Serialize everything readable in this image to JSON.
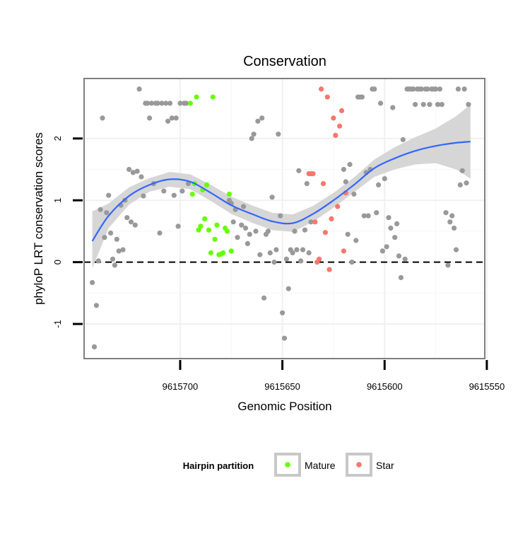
{
  "chart_data": {
    "type": "scatter",
    "title": "Conservation",
    "xlabel": "Genomic Position",
    "ylabel": "phyloP LRT conservation scores",
    "x_reversed": true,
    "xlim": [
      9615747,
      9615551
    ],
    "ylim": [
      -1.56,
      2.97
    ],
    "x_ticks": [
      9615700,
      9615650,
      9615600,
      9615550
    ],
    "x_tick_labels": [
      "9615700",
      "9615650",
      "9615600",
      "9615550"
    ],
    "y_ticks": [
      -1,
      0,
      1,
      2
    ],
    "y_tick_labels": [
      "-1",
      "0",
      "1",
      "2"
    ],
    "reference_line": {
      "y": 0,
      "style": "dashed"
    },
    "grid": true,
    "legend": {
      "title": "Hairpin partition",
      "position": "bottom",
      "entries": [
        {
          "label": "Mature",
          "color": "#66ff00"
        },
        {
          "label": "Star",
          "color": "#f8766d"
        }
      ]
    },
    "colors": {
      "other": "#999999",
      "Mature": "#66ff00",
      "Star": "#f8766d",
      "smooth": "#3366ff",
      "band": "#d6d6d6"
    },
    "series": [
      {
        "name": "other",
        "points": [
          [
            9615743,
            -0.33
          ],
          [
            9615742,
            -1.37
          ],
          [
            9615741,
            -0.7
          ],
          [
            9615740,
            0.02
          ],
          [
            9615739,
            0.85
          ],
          [
            9615738,
            2.33
          ],
          [
            9615737,
            0.4
          ],
          [
            9615736,
            0.8
          ],
          [
            9615735,
            1.08
          ],
          [
            9615734,
            0.47
          ],
          [
            9615733,
            0.05
          ],
          [
            9615732,
            -0.05
          ],
          [
            9615731,
            0.37
          ],
          [
            9615730,
            0.18
          ],
          [
            9615729,
            0.92
          ],
          [
            9615728,
            0.2
          ],
          [
            9615727,
            1.0
          ],
          [
            9615726,
            0.72
          ],
          [
            9615725,
            1.5
          ],
          [
            9615724,
            0.65
          ],
          [
            9615723,
            1.45
          ],
          [
            9615722,
            0.6
          ],
          [
            9615721,
            1.47
          ],
          [
            9615720,
            2.8
          ],
          [
            9615719,
            1.38
          ],
          [
            9615718,
            1.07
          ],
          [
            9615717,
            2.57
          ],
          [
            9615716,
            2.57
          ],
          [
            9615715,
            2.33
          ],
          [
            9615714,
            2.57
          ],
          [
            9615713,
            1.27
          ],
          [
            9615712,
            2.57
          ],
          [
            9615711,
            2.57
          ],
          [
            9615710,
            0.47
          ],
          [
            9615709,
            2.57
          ],
          [
            9615708,
            1.15
          ],
          [
            9615707,
            2.57
          ],
          [
            9615706,
            2.28
          ],
          [
            9615705,
            2.57
          ],
          [
            9615704,
            2.33
          ],
          [
            9615703,
            1.08
          ],
          [
            9615702,
            2.33
          ],
          [
            9615701,
            0.58
          ],
          [
            9615700,
            2.57
          ],
          [
            9615699,
            1.15
          ],
          [
            9615698,
            2.57
          ],
          [
            9615697,
            2.57
          ],
          [
            9615696,
            1.27
          ],
          [
            9615676,
            1.0
          ],
          [
            9615675,
            0.95
          ],
          [
            9615674,
            0.65
          ],
          [
            9615673,
            0.85
          ],
          [
            9615672,
            0.4
          ],
          [
            9615670,
            0.6
          ],
          [
            9615669,
            0.9
          ],
          [
            9615668,
            0.55
          ],
          [
            9615667,
            0.3
          ],
          [
            9615666,
            0.45
          ],
          [
            9615665,
            2.0
          ],
          [
            9615664,
            2.07
          ],
          [
            9615663,
            0.5
          ],
          [
            9615662,
            2.28
          ],
          [
            9615661,
            0.12
          ],
          [
            9615660,
            2.33
          ],
          [
            9615659,
            -0.58
          ],
          [
            9615658,
            0.45
          ],
          [
            9615657,
            0.5
          ],
          [
            9615656,
            0.15
          ],
          [
            9615655,
            1.05
          ],
          [
            9615654,
            0.0
          ],
          [
            9615653,
            0.2
          ],
          [
            9615652,
            2.07
          ],
          [
            9615651,
            0.75
          ],
          [
            9615650,
            -0.82
          ],
          [
            9615649,
            -1.23
          ],
          [
            9615648,
            0.05
          ],
          [
            9615647,
            -0.43
          ],
          [
            9615646,
            0.2
          ],
          [
            9615645,
            0.15
          ],
          [
            9615644,
            0.5
          ],
          [
            9615643,
            0.2
          ],
          [
            9615642,
            1.48
          ],
          [
            9615641,
            0.02
          ],
          [
            9615640,
            0.2
          ],
          [
            9615639,
            0.52
          ],
          [
            9615638,
            1.27
          ],
          [
            9615637,
            0.15
          ],
          [
            9615636,
            0.65
          ],
          [
            9615620,
            1.5
          ],
          [
            9615619,
            1.3
          ],
          [
            9615618,
            0.45
          ],
          [
            9615617,
            1.58
          ],
          [
            9615616,
            0.0
          ],
          [
            9615615,
            1.1
          ],
          [
            9615614,
            0.35
          ],
          [
            9615613,
            2.67
          ],
          [
            9615612,
            2.67
          ],
          [
            9615611,
            2.67
          ],
          [
            9615610,
            0.75
          ],
          [
            9615609,
            1.45
          ],
          [
            9615608,
            0.75
          ],
          [
            9615607,
            1.5
          ],
          [
            9615606,
            2.8
          ],
          [
            9615605,
            2.8
          ],
          [
            9615604,
            0.8
          ],
          [
            9615603,
            1.25
          ],
          [
            9615602,
            2.57
          ],
          [
            9615601,
            0.18
          ],
          [
            9615600,
            1.35
          ],
          [
            9615599,
            0.25
          ],
          [
            9615598,
            0.72
          ],
          [
            9615597,
            0.55
          ],
          [
            9615596,
            2.5
          ],
          [
            9615595,
            0.4
          ],
          [
            9615594,
            0.62
          ],
          [
            9615593,
            0.1
          ],
          [
            9615592,
            -0.25
          ],
          [
            9615591,
            1.98
          ],
          [
            9615590,
            0.05
          ],
          [
            9615589,
            2.8
          ],
          [
            9615588,
            2.8
          ],
          [
            9615587,
            2.8
          ],
          [
            9615586,
            2.8
          ],
          [
            9615585,
            2.55
          ],
          [
            9615584,
            2.8
          ],
          [
            9615583,
            2.8
          ],
          [
            9615582,
            2.8
          ],
          [
            9615581,
            2.55
          ],
          [
            9615580,
            2.8
          ],
          [
            9615579,
            2.8
          ],
          [
            9615578,
            2.55
          ],
          [
            9615577,
            2.8
          ],
          [
            9615576,
            2.8
          ],
          [
            9615575,
            2.8
          ],
          [
            9615574,
            2.55
          ],
          [
            9615573,
            2.8
          ],
          [
            9615572,
            2.55
          ],
          [
            9615570,
            0.8
          ],
          [
            9615569,
            -0.05
          ],
          [
            9615568,
            0.65
          ],
          [
            9615567,
            0.75
          ],
          [
            9615566,
            0.55
          ],
          [
            9615565,
            0.2
          ],
          [
            9615564,
            2.8
          ],
          [
            9615563,
            1.25
          ],
          [
            9615562,
            1.48
          ],
          [
            9615561,
            2.8
          ],
          [
            9615560,
            1.28
          ],
          [
            9615559,
            2.55
          ]
        ]
      },
      {
        "name": "Mature",
        "points": [
          [
            9615695,
            2.57
          ],
          [
            9615694,
            1.1
          ],
          [
            9615693,
            1.27
          ],
          [
            9615692,
            2.67
          ],
          [
            9615691,
            0.52
          ],
          [
            9615690,
            0.58
          ],
          [
            9615689,
            1.17
          ],
          [
            9615688,
            0.7
          ],
          [
            9615687,
            1.25
          ],
          [
            9615686,
            0.52
          ],
          [
            9615685,
            0.15
          ],
          [
            9615684,
            2.67
          ],
          [
            9615683,
            0.37
          ],
          [
            9615682,
            0.6
          ],
          [
            9615681,
            0.12
          ],
          [
            9615680,
            0.13
          ],
          [
            9615679,
            0.15
          ],
          [
            9615678,
            0.55
          ],
          [
            9615677,
            0.5
          ],
          [
            9615676,
            1.1
          ],
          [
            9615675,
            0.18
          ]
        ]
      },
      {
        "name": "Star",
        "points": [
          [
            9615634,
            0.65
          ],
          [
            9615633,
            0.0
          ],
          [
            9615632,
            0.05
          ],
          [
            9615631,
            2.8
          ],
          [
            9615630,
            1.27
          ],
          [
            9615629,
            0.48
          ],
          [
            9615628,
            2.67
          ],
          [
            9615627,
            -0.12
          ],
          [
            9615626,
            0.7
          ],
          [
            9615625,
            2.33
          ],
          [
            9615624,
            2.05
          ],
          [
            9615623,
            0.9
          ],
          [
            9615622,
            2.2
          ],
          [
            9615621,
            2.45
          ],
          [
            9615620,
            0.18
          ],
          [
            9615619,
            1.12
          ],
          [
            9615635,
            1.43
          ],
          [
            9615636,
            1.43
          ],
          [
            9615637,
            1.43
          ]
        ]
      }
    ],
    "smooth": {
      "method": "loess",
      "x": [
        9615743,
        9615735,
        9615725,
        9615715,
        9615705,
        9615695,
        9615685,
        9615675,
        9615665,
        9615655,
        9615645,
        9615635,
        9615625,
        9615615,
        9615605,
        9615595,
        9615585,
        9615575,
        9615565,
        9615558
      ],
      "y": [
        0.34,
        0.75,
        1.07,
        1.25,
        1.34,
        1.3,
        1.12,
        0.92,
        0.78,
        0.66,
        0.63,
        0.78,
        1.0,
        1.25,
        1.52,
        1.68,
        1.8,
        1.88,
        1.93,
        1.95
      ],
      "lower": [
        -0.1,
        0.55,
        0.93,
        1.14,
        1.22,
        1.18,
        0.99,
        0.78,
        0.64,
        0.52,
        0.49,
        0.65,
        0.88,
        1.13,
        1.38,
        1.5,
        1.58,
        1.6,
        1.5,
        1.35
      ],
      "upper": [
        0.82,
        0.95,
        1.21,
        1.36,
        1.46,
        1.42,
        1.25,
        1.06,
        0.92,
        0.8,
        0.77,
        0.91,
        1.12,
        1.37,
        1.66,
        1.86,
        2.02,
        2.16,
        2.36,
        2.55
      ]
    }
  }
}
